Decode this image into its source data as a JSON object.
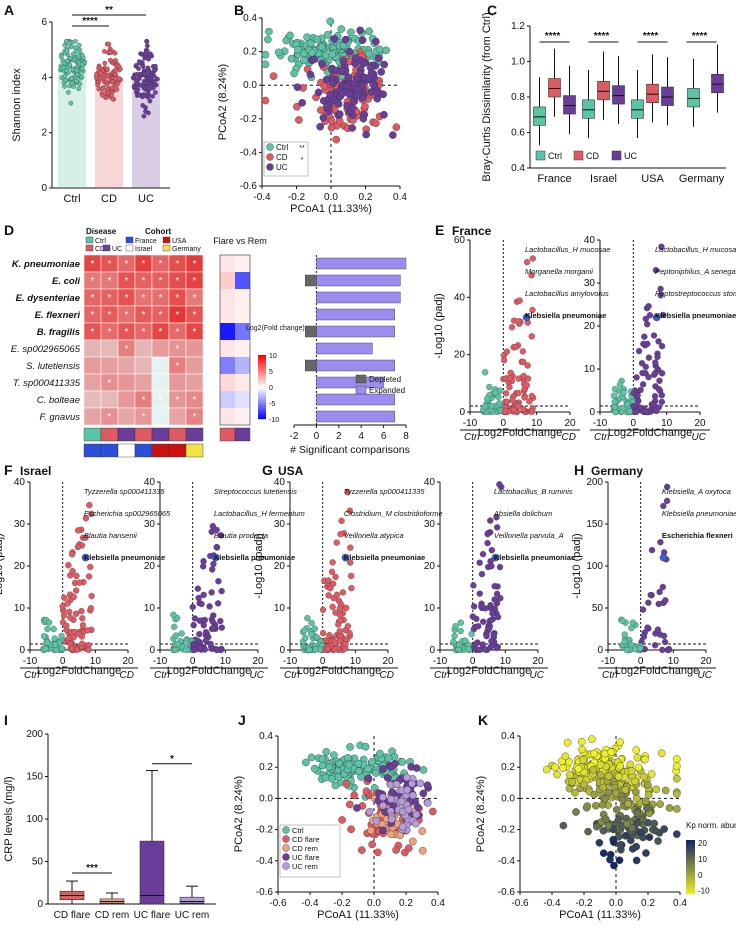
{
  "panels": {
    "A": {
      "letter": "A"
    },
    "B": {
      "letter": "B"
    },
    "C": {
      "letter": "C"
    },
    "D": {
      "letter": "D"
    },
    "E": {
      "letter": "E",
      "title": "France"
    },
    "F": {
      "letter": "F",
      "title": "Israel"
    },
    "G": {
      "letter": "G",
      "title": "USA"
    },
    "H": {
      "letter": "H",
      "title": "Germany"
    },
    "I": {
      "letter": "I"
    },
    "J": {
      "letter": "J"
    },
    "K": {
      "letter": "K"
    }
  },
  "colors": {
    "ctrl": "#5cc4a6",
    "cd": "#e05a63",
    "uc": "#6a3d9a",
    "kp": "#3b5bdb",
    "depleted": "#666666",
    "expanded": "#9b8cf0"
  },
  "chart_data": [
    {
      "id": "A",
      "type": "scatter",
      "ylabel": "Shannon index",
      "categories": [
        "Ctrl",
        "CD",
        "UC"
      ],
      "ylim": [
        0,
        6
      ],
      "yticks": [
        "0",
        "2",
        "4",
        "6"
      ],
      "means": [
        4.4,
        4.0,
        3.95
      ],
      "spread": [
        [
          2.6,
          5.3
        ],
        [
          1.3,
          5.2
        ],
        [
          1.2,
          5.3
        ]
      ],
      "significance": [
        "****",
        "**"
      ]
    },
    {
      "id": "B",
      "type": "scatter",
      "xlabel": "PCoA1 (11.33%)",
      "ylabel": "PCoA2 (8.24%)",
      "xlim": [
        -0.4,
        0.4
      ],
      "ylim": [
        -0.6,
        0.4
      ],
      "xticks": [
        "-0.4",
        "-0.2",
        "0.0",
        "0.2",
        "0.4"
      ],
      "yticks": [
        "-0.6",
        "-0.4",
        "-0.2",
        "0.0",
        "0.2",
        "0.4"
      ],
      "legend": [
        "Ctrl",
        "CD",
        "UC"
      ],
      "significance": [
        "**",
        "*"
      ]
    },
    {
      "id": "C",
      "type": "bar",
      "ylabel": "Bray-Curtis Dissimilarity (from Ctrl)",
      "categories": [
        "France",
        "Israel",
        "USA",
        "Germany"
      ],
      "ylim": [
        0.2,
        1.2
      ],
      "yticks": [
        "0.4",
        "0.6",
        "0.8",
        "1.0",
        "1.2"
      ],
      "legend": [
        "Ctrl",
        "CD",
        "UC"
      ],
      "series": [
        {
          "name": "Ctrl",
          "medians": [
            0.56,
            0.61,
            0.61,
            0.69
          ]
        },
        {
          "name": "CD",
          "medians": [
            0.76,
            0.74,
            0.72,
            null
          ]
        },
        {
          "name": "UC",
          "medians": [
            0.64,
            0.71,
            0.7,
            0.79
          ]
        }
      ],
      "significance": [
        "****",
        "****",
        "****",
        "****"
      ]
    },
    {
      "id": "D",
      "type": "heatmap",
      "header_disease": "Disease",
      "header_cohort": "Cohort",
      "legend_items": [
        "Ctrl",
        "CD",
        "UC",
        "France",
        "Israel",
        "USA",
        "Germany"
      ],
      "rows": [
        "K. pneumoniae",
        "E. coli",
        "E. dysenteriae",
        "E. flexneri",
        "B. fragilis",
        "E. sp002965065",
        "S. lutetiensis",
        "T. sp000411335",
        "C. bolteae",
        "F. gnavus"
      ],
      "bold_rows": [
        true,
        true,
        true,
        true,
        true,
        false,
        false,
        false,
        false,
        false
      ],
      "flare_title": "Flare vs Rem",
      "colorbar_label": "Log2(Fold change)",
      "colorbar_ticks": [
        "10",
        "5",
        "0",
        "-5",
        "-10"
      ],
      "bar_values": [
        8,
        7.5,
        7.5,
        7,
        7,
        5,
        7,
        6,
        7,
        7
      ],
      "depleted": [
        0,
        1,
        0,
        0,
        1,
        0,
        1,
        0,
        0,
        0
      ],
      "bar_xticks": [
        "-2",
        "0",
        "2",
        "4",
        "6",
        "8"
      ],
      "bar_xlabel": "# Significant comparisons",
      "bar_legend": [
        "Depleted",
        "Expanded"
      ]
    },
    {
      "id": "E-CD",
      "type": "scatter",
      "cohort": "France",
      "comparison": "CD",
      "xlim": [
        -10,
        20
      ],
      "ylim": [
        0,
        70
      ],
      "xticks": [
        "-10",
        "0",
        "10",
        "20"
      ],
      "yticks": [
        "0",
        "20",
        "40",
        "60"
      ],
      "ylabel": "-Log10 (padj)",
      "xlabel": "Log2FoldChange",
      "left": "Ctrl",
      "right": "CD",
      "labels": [
        "Lactobacillus_H mucosae",
        "Morganella morganii",
        "Lactobacillus amylovorus",
        "Klebsiella pneumoniae"
      ]
    },
    {
      "id": "E-UC",
      "type": "scatter",
      "cohort": "France",
      "comparison": "UC",
      "xlim": [
        -10,
        20
      ],
      "ylim": [
        0,
        40
      ],
      "xticks": [
        "-10",
        "0",
        "10",
        "20"
      ],
      "yticks": [
        "0",
        "10",
        "20",
        "30",
        "40"
      ],
      "xlabel": "Log2FoldChange",
      "left": "Ctrl",
      "right": "UC",
      "labels": [
        "Lactobacillus_H mucosae",
        "Peptoniphilus_A senegalensis",
        "Peptostreptococcus stomatis",
        "Klebsiella pneumoniae"
      ]
    },
    {
      "id": "F-CD",
      "type": "scatter",
      "cohort": "Israel",
      "comparison": "CD",
      "xlim": [
        -10,
        20
      ],
      "ylim": [
        0,
        40
      ],
      "xticks": [
        "-10",
        "0",
        "10",
        "20"
      ],
      "yticks": [
        "0",
        "10",
        "20",
        "30",
        "40"
      ],
      "ylabel": "-Log10 (padj)",
      "xlabel": "Log2FoldChange",
      "left": "Ctrl",
      "right": "CD",
      "labels": [
        "Tyzzerella sp000411335",
        "Escherichia sp002965065",
        "Blautia hansenii",
        "Klebsiella pneumoniae"
      ]
    },
    {
      "id": "F-UC",
      "type": "scatter",
      "cohort": "Israel",
      "comparison": "UC",
      "xlim": [
        -10,
        20
      ],
      "ylim": [
        0,
        40
      ],
      "xticks": [
        "-10",
        "0",
        "10",
        "20"
      ],
      "yticks": [
        "0",
        "10",
        "20",
        "30",
        "40"
      ],
      "xlabel": "Log2FoldChange",
      "left": "Ctrl",
      "right": "UC",
      "labels": [
        "Streptococcus lutetiensis",
        "Lactobacillus_H fermentum",
        "Blautia producta",
        "Klebsiella pneumoniae"
      ]
    },
    {
      "id": "G-CD",
      "type": "scatter",
      "cohort": "USA",
      "comparison": "CD",
      "xlim": [
        -10,
        20
      ],
      "ylim": [
        0,
        40
      ],
      "xticks": [
        "-10",
        "0",
        "10",
        "20"
      ],
      "yticks": [
        "0",
        "10",
        "20",
        "30",
        "40"
      ],
      "ylabel": "-Log10 (padj)",
      "xlabel": "Log2FoldChange",
      "left": "Ctrl",
      "right": "CD",
      "labels": [
        "Tyzzerella sp000411335",
        "Clostridium_M clostridioforme",
        "Veillonella atypica",
        "Klebsiella pneumoniae"
      ]
    },
    {
      "id": "G-UC",
      "type": "scatter",
      "cohort": "USA",
      "comparison": "UC",
      "xlim": [
        -10,
        20
      ],
      "ylim": [
        0,
        40
      ],
      "xticks": [
        "-10",
        "0",
        "10",
        "20"
      ],
      "yticks": [
        "0",
        "10",
        "20",
        "30",
        "40"
      ],
      "xlabel": "Log2FoldChange",
      "left": "Ctrl",
      "right": "UC",
      "labels": [
        "Lactobacillus_B ruminis",
        "Absiella dolichum",
        "Veillonella parvula_A",
        "Klebsiella pneumoniae"
      ]
    },
    {
      "id": "H-UC",
      "type": "scatter",
      "cohort": "Germany",
      "comparison": "UC",
      "xlim": [
        -10,
        20
      ],
      "ylim": [
        0,
        200
      ],
      "xticks": [
        "-10",
        "0",
        "10",
        "20"
      ],
      "yticks": [
        "0",
        "50",
        "100",
        "150",
        "200"
      ],
      "ylabel": "-Log10 (padj)",
      "xlabel": "Log2FoldChange",
      "left": "Ctrl",
      "right": "UC",
      "labels": [
        "Klebsiella_A oxytoca",
        "Klebsiella pneumoniae",
        "Escherichia flexneri"
      ]
    },
    {
      "id": "I",
      "type": "bar",
      "ylabel": "CRP levels (mg/l)",
      "categories": [
        "CD flare",
        "CD rem",
        "UC flare",
        "UC rem"
      ],
      "ylim": [
        0,
        200
      ],
      "yticks": [
        "0",
        "50",
        "100",
        "150",
        "200"
      ],
      "boxes": [
        [
          5,
          10,
          15,
          27
        ],
        [
          1,
          3,
          6,
          13
        ],
        [
          0,
          10,
          74,
          157
        ],
        [
          1,
          3,
          8,
          21
        ]
      ],
      "significance": [
        "***",
        "*"
      ]
    },
    {
      "id": "J",
      "type": "scatter",
      "xlabel": "PCoA1 (11.33%)",
      "ylabel": "PCoA2 (8.24%)",
      "xlim": [
        -0.6,
        0.4
      ],
      "ylim": [
        -0.6,
        0.4
      ],
      "xticks": [
        "-0.6",
        "-0.4",
        "-0.2",
        "0.0",
        "0.2",
        "0.4"
      ],
      "yticks": [
        "-0.6",
        "-0.4",
        "-0.2",
        "0.0",
        "0.2",
        "0.4"
      ],
      "legend": [
        "Ctrl",
        "CD flare",
        "CD rem",
        "UC flare",
        "UC rem"
      ]
    },
    {
      "id": "K",
      "type": "scatter",
      "xlabel": "PCoA1 (11.33%)",
      "ylabel": "PCoA2 (8.24%)",
      "xlim": [
        -0.6,
        0.4
      ],
      "ylim": [
        -0.6,
        0.4
      ],
      "xticks": [
        "-0.6",
        "-0.4",
        "-0.2",
        "0.0",
        "0.2",
        "0.4"
      ],
      "yticks": [
        "-0.6",
        "-0.4",
        "-0.2",
        "0.0",
        "0.2",
        "0.4"
      ],
      "colorbar_label": "Kp norm. abundance",
      "colorbar_ticks": [
        "20",
        "10",
        "0",
        "-10"
      ]
    }
  ]
}
